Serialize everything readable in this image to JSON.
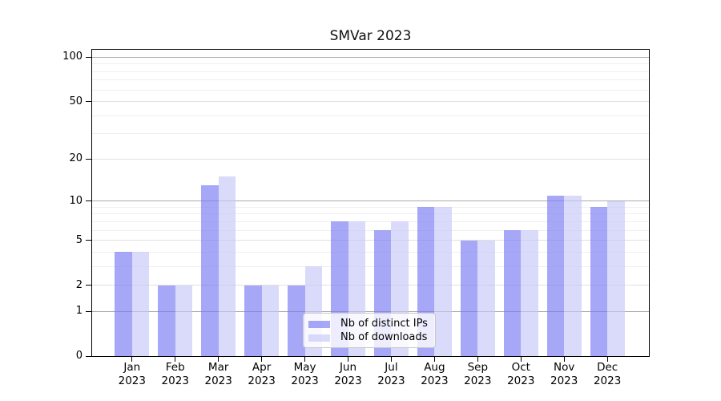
{
  "title": "SMVar 2023",
  "y_axis": {
    "tick_labels": [
      "0",
      "1",
      "2",
      "5",
      "10",
      "20",
      "50",
      "100"
    ]
  },
  "x_axis": {
    "year": "2023",
    "months": [
      "Jan",
      "Feb",
      "Mar",
      "Apr",
      "May",
      "Jun",
      "Jul",
      "Aug",
      "Sep",
      "Oct",
      "Nov",
      "Dec"
    ]
  },
  "legend": {
    "items": [
      {
        "label": "Nb of distinct IPs",
        "series_key": "distinct-ips"
      },
      {
        "label": "Nb of downloads",
        "series_key": "downloads"
      }
    ]
  },
  "colors": {
    "ips_fill": "rgba(120,120,242,0.65)",
    "downloads_fill": "rgba(198,198,247,0.65)",
    "ips_hex_on_white": "#a7a7f2",
    "downloads_hex_on_white": "#dadaf7",
    "grid_major": "#ababab",
    "grid_mid": "#e0e0e0",
    "grid_minor": "#efefef",
    "spine": "#000000"
  },
  "chart_data": {
    "type": "bar",
    "title": "SMVar 2023",
    "categories": [
      "Jan 2023",
      "Feb 2023",
      "Mar 2023",
      "Apr 2023",
      "May 2023",
      "Jun 2023",
      "Jul 2023",
      "Aug 2023",
      "Sep 2023",
      "Oct 2023",
      "Nov 2023",
      "Dec 2023"
    ],
    "series": [
      {
        "name": "Nb of distinct IPs",
        "key": "distinct-ips",
        "values": [
          4,
          2,
          13,
          2,
          2,
          7,
          6,
          9,
          5,
          6,
          11,
          9
        ]
      },
      {
        "name": "Nb of downloads",
        "key": "downloads",
        "values": [
          4,
          2,
          15,
          2,
          3,
          7,
          7,
          9,
          5,
          6,
          11,
          10
        ]
      }
    ],
    "yticks": [
      0,
      1,
      2,
      5,
      10,
      20,
      50,
      100
    ],
    "minor_gridline_values": [
      3,
      4,
      6,
      7,
      8,
      9,
      30,
      40,
      60,
      70,
      80,
      90
    ],
    "scale": "log-like: y position proportional to log10(1+value)",
    "ylim": [
      0,
      114
    ],
    "xlabel": "",
    "ylabel": "",
    "grid": true,
    "legend_position": "lower center"
  }
}
